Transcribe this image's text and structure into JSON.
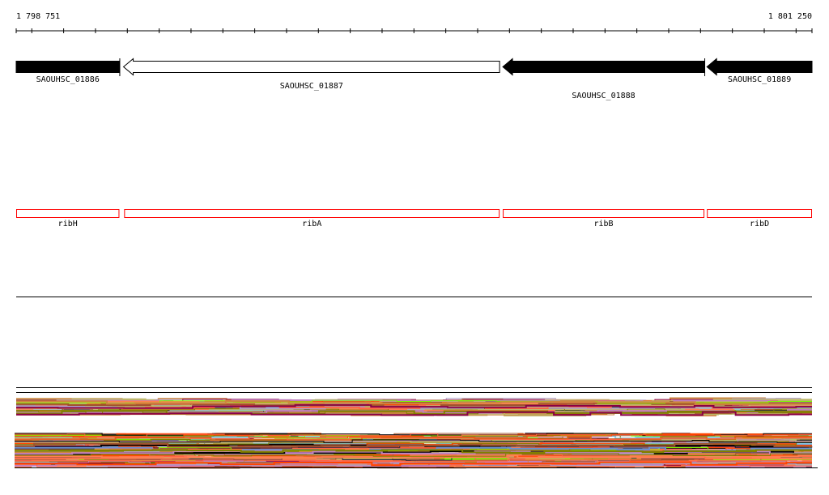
{
  "ruler": {
    "start_label": "1 798 751",
    "end_label": "1 801 250",
    "start": 1798751,
    "end": 1801250,
    "tick_interval": 100
  },
  "genes": [
    {
      "id": "SAOUHSC_01886",
      "start": 1798751,
      "end": 1799075,
      "strand": "+",
      "fill": "#000000"
    },
    {
      "id": "SAOUHSC_01887",
      "start": 1799088,
      "end": 1800269,
      "strand": "-",
      "fill": "#ffffff"
    },
    {
      "id": "SAOUHSC_01888",
      "start": 1800279,
      "end": 1800912,
      "strand": "-",
      "fill": "#000000"
    },
    {
      "id": "SAOUHSC_01889",
      "start": 1800920,
      "end": 1801250,
      "strand": "-",
      "fill": "#000000"
    }
  ],
  "gene_names": [
    {
      "name": "ribH",
      "start": 1798751,
      "end": 1799075
    },
    {
      "name": "ribA",
      "start": 1799090,
      "end": 1800269
    },
    {
      "name": "ribB",
      "start": 1800279,
      "end": 1800912
    },
    {
      "name": "ribD",
      "start": 1800920,
      "end": 1801250
    }
  ],
  "colors": {
    "gene_name_box": "#ff0000",
    "outline": "#000000"
  },
  "coverage_palette": [
    "#d2691e",
    "#ff7f50",
    "#808000",
    "#b0a0c8",
    "#8b0045",
    "#7cfc00",
    "#000000",
    "#87ceeb",
    "#c080c0",
    "#ff6347",
    "#202040",
    "#cd853f",
    "#a0522d",
    "#bdb76b",
    "#6a8fd0",
    "#ff4500"
  ]
}
